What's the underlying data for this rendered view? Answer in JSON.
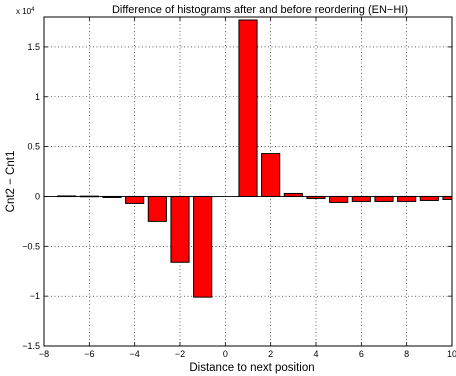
{
  "chart_data": {
    "type": "bar",
    "title": "Difference of histograms after and before reordering (EN−HI)",
    "xlabel": "Distance to next position",
    "ylabel": "Cnt2 − Cnt1",
    "y_scale_note": "x 10",
    "y_scale_exp": "4",
    "xlim": [
      -8,
      10
    ],
    "ylim": [
      -15000,
      18000
    ],
    "grid": true,
    "bar_color": "#ff0000",
    "xticks": [
      -8,
      -6,
      -4,
      -2,
      0,
      2,
      4,
      6,
      8,
      10
    ],
    "xtick_labels": [
      "−8",
      "−6",
      "−4",
      "−2",
      "0",
      "2",
      "4",
      "6",
      "8",
      "10"
    ],
    "yticks": [
      -15000,
      -10000,
      -5000,
      0,
      5000,
      10000,
      15000
    ],
    "ytick_labels": [
      "−1.5",
      "−1",
      "−0.5",
      "0",
      "0.5",
      "1",
      "1.5"
    ],
    "x": [
      -7,
      -6,
      -5,
      -4,
      -3,
      -2,
      -1,
      1,
      2,
      3,
      4,
      5,
      6,
      7,
      8,
      9,
      10
    ],
    "values": [
      50,
      30,
      -100,
      -700,
      -2500,
      -6600,
      -10100,
      17700,
      4300,
      300,
      -200,
      -600,
      -500,
      -500,
      -500,
      -400,
      -300
    ]
  }
}
